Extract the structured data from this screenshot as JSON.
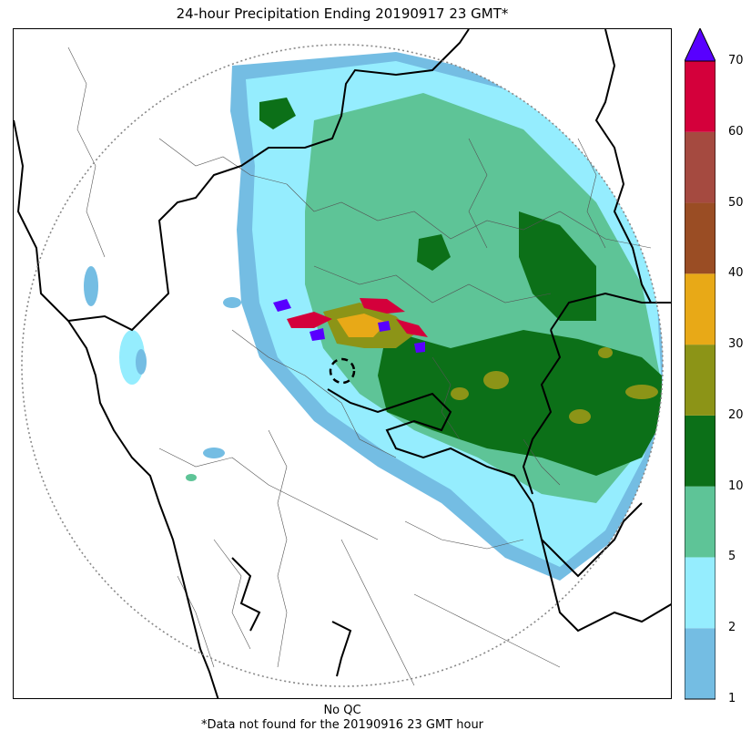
{
  "title": "24-hour Precipitation Ending 20190917 23 GMT*",
  "footer": {
    "qc_label": "No QC",
    "note": "*Data not found for the 20190916 23 GMT hour"
  },
  "colorbar": {
    "levels": [
      "1",
      "2",
      "5",
      "10",
      "20",
      "30",
      "40",
      "50",
      "60",
      "70"
    ],
    "colors": [
      "#74bde3",
      "#95edfe",
      "#5ec497",
      "#0c7018",
      "#8c9417",
      "#e8a917",
      "#9a4d24",
      "#a54a40",
      "#d4003b"
    ],
    "over_color": "#5800ff"
  },
  "map": {
    "land_color": "#ffffff",
    "range_ring": "dotted",
    "palette": {
      "light_blue": "#74bde3",
      "cyan": "#95edfe",
      "light_green": "#5ec497",
      "dark_green": "#0c7018",
      "olive": "#8c9417",
      "orange": "#e8a917",
      "magenta": "#d4003b",
      "purple": "#5800ff"
    }
  }
}
